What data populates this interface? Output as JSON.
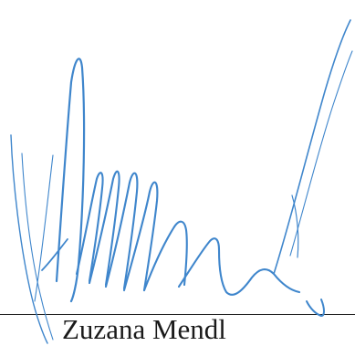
{
  "signature": {
    "ink_color": "#3f86cc",
    "line_color": "#222222"
  },
  "signer": {
    "name": "Zuzana Mendl"
  }
}
